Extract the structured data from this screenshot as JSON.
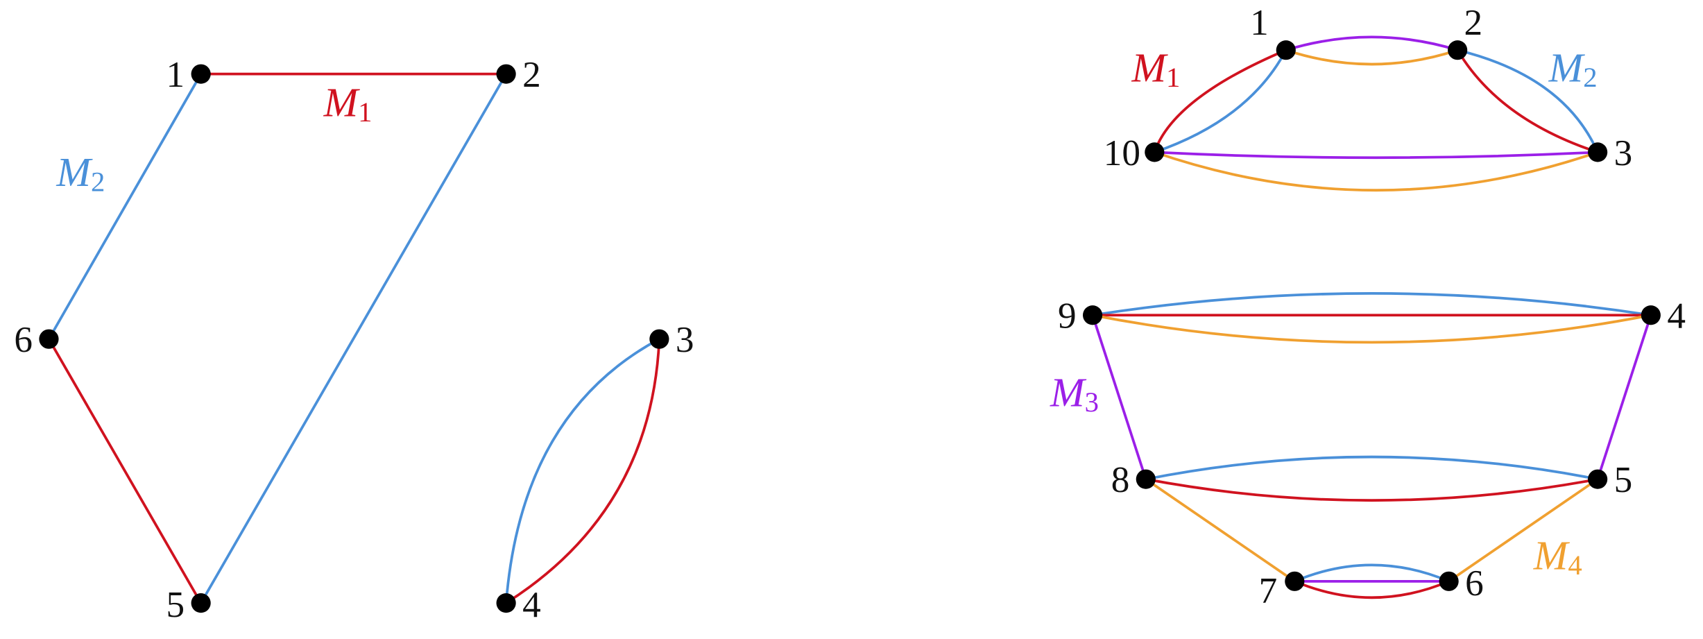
{
  "left_graph": {
    "nodes": [
      "1",
      "2",
      "3",
      "4",
      "5",
      "6"
    ],
    "labels": [
      {
        "base": "M",
        "sub": "1"
      },
      {
        "base": "M",
        "sub": "2"
      }
    ]
  },
  "right_graph": {
    "nodes": [
      "1",
      "2",
      "3",
      "4",
      "5",
      "6",
      "7",
      "8",
      "9",
      "10"
    ],
    "labels": [
      {
        "base": "M",
        "sub": "1"
      },
      {
        "base": "M",
        "sub": "2"
      },
      {
        "base": "M",
        "sub": "3"
      },
      {
        "base": "M",
        "sub": "4"
      }
    ]
  }
}
